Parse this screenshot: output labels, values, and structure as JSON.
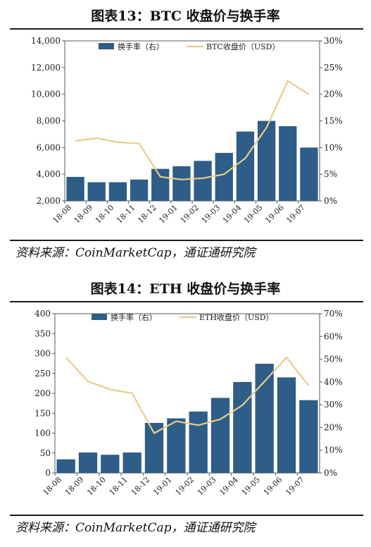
{
  "charts": [
    {
      "figure_title": "图表13：BTC 收盘价与换手率",
      "source": "资料来源：CoinMarketCap，通证通研究院"
    },
    {
      "figure_title": "图表14：ETH 收盘价与换手率",
      "source": "资料来源：CoinMarketCap，通证通研究院"
    }
  ],
  "chart_data": [
    {
      "type": "bar",
      "bar_color": "#2e5d87",
      "line_color": "#e8cc8a",
      "x": [
        "18-08",
        "18-09",
        "18-10",
        "18-11",
        "18-12",
        "19-01",
        "19-02",
        "19-03",
        "19-04",
        "19-05",
        "19-06",
        "19-07"
      ],
      "y_left_ticks": [
        "14,000",
        "12,000",
        "10,000",
        "8,000",
        "6,000",
        "4,000",
        "2,000"
      ],
      "y_right_ticks": [
        "30%",
        "25%",
        "20%",
        "15%",
        "10%",
        "5%",
        "0%"
      ],
      "ylim_left": [
        2000,
        14000
      ],
      "ylim_right": [
        0,
        30
      ],
      "series": [
        {
          "name": "换手率（右）",
          "kind": "bar",
          "axis": "right",
          "values": [
            4.5,
            3.5,
            3.5,
            4,
            6,
            6.5,
            7.5,
            9,
            13,
            15,
            14,
            10
          ]
        },
        {
          "name": "BTC收盘价（USD）",
          "kind": "line",
          "axis": "left",
          "values": [
            6500,
            6700,
            6400,
            6300,
            3800,
            3600,
            3700,
            4000,
            5200,
            7500,
            11000,
            10000
          ]
        }
      ]
    },
    {
      "type": "bar",
      "bar_color": "#2e5d87",
      "line_color": "#e8cc8a",
      "x": [
        "18-08",
        "18-09",
        "18-10",
        "18-11",
        "18-12",
        "19-01",
        "19-02",
        "19-03",
        "19-04",
        "19-05",
        "19-06",
        "19-07"
      ],
      "y_left_ticks": [
        "400",
        "350",
        "300",
        "250",
        "200",
        "150",
        "100",
        "50",
        "0"
      ],
      "y_right_ticks": [
        "70%",
        "60%",
        "50%",
        "40%",
        "30%",
        "20%",
        "10%",
        "0%"
      ],
      "ylim_left": [
        0,
        400
      ],
      "ylim_right": [
        0,
        70
      ],
      "series": [
        {
          "name": "换手率（右）",
          "kind": "bar",
          "axis": "right",
          "values": [
            6,
            9,
            8,
            9,
            22,
            24,
            27,
            33,
            40,
            48,
            42,
            32
          ]
        },
        {
          "name": "ETH收盘价（USD）",
          "kind": "line",
          "axis": "left",
          "values": [
            290,
            230,
            210,
            200,
            100,
            130,
            120,
            135,
            170,
            230,
            290,
            220
          ]
        }
      ]
    }
  ]
}
